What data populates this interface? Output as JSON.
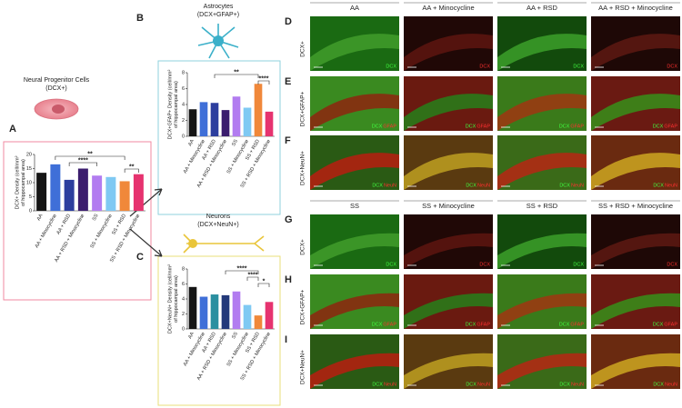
{
  "figure": {
    "panel_A": {
      "letter": "A",
      "title": [
        "Neural Progenitor Cells",
        "(DCX+)"
      ]
    },
    "panel_B": {
      "letter": "B",
      "title": [
        "Astrocytes",
        "(DCX+GFAP+)"
      ]
    },
    "panel_C": {
      "letter": "C",
      "title": [
        "Neurons",
        "(DCX+NeuN+)"
      ]
    }
  },
  "chart_data": [
    {
      "type": "bar",
      "ylabel": [
        "DCX+ Density (cell/mm²",
        "of hippocampal area)"
      ],
      "categories": [
        "AA",
        "AA + Minocycline",
        "AA + RSD",
        "AA + RSD + Minocycline",
        "SS",
        "SS + Minocycline",
        "SS + RSD",
        "SS + RSD + Minocycline"
      ],
      "values": [
        13.5,
        16.5,
        11,
        15,
        12.5,
        12,
        10.5,
        13
      ],
      "colors": [
        "#151515",
        "#3f6fd8",
        "#2c3e9e",
        "#3b1d6e",
        "#b27cf0",
        "#7fc9f3",
        "#f0883a",
        "#e6336f"
      ],
      "ylim": [
        0,
        20
      ],
      "yticks": [
        0,
        5,
        10,
        15,
        20
      ],
      "annotations": [
        {
          "text": "**",
          "from": "AA + Minocycline",
          "to": "SS + RSD"
        },
        {
          "text": "****",
          "from": "AA + RSD",
          "to": "SS"
        },
        {
          "text": "**",
          "from": "SS + RSD",
          "to": "SS + RSD + Minocycline"
        }
      ]
    },
    {
      "type": "bar",
      "ylabel": [
        "DCX+GFAP+ Density (cell/mm²",
        "of hippocampal area)"
      ],
      "categories": [
        "AA",
        "AA + Minocycline",
        "AA + RSD",
        "AA + RSD + Minocycline",
        "SS",
        "SS + Minocycline",
        "SS + RSD",
        "SS + RSD + Minocycline"
      ],
      "values": [
        3.4,
        4.3,
        4.2,
        3.3,
        5.0,
        3.6,
        6.6,
        3.1
      ],
      "colors": [
        "#151515",
        "#3f6fd8",
        "#2c3e9e",
        "#3b1d6e",
        "#b27cf0",
        "#7fc9f3",
        "#f0883a",
        "#e6336f"
      ],
      "ylim": [
        0,
        8
      ],
      "yticks": [
        0,
        2,
        4,
        6,
        8
      ],
      "annotations": [
        {
          "text": "**",
          "from": "AA + RSD",
          "to": "SS + RSD"
        },
        {
          "text": "****",
          "from": "SS + RSD",
          "to": "SS + RSD + Minocycline"
        }
      ]
    },
    {
      "type": "bar",
      "ylabel": [
        "DCX+NeuN+ Density (cell/mm²",
        "of hippocampal area)"
      ],
      "categories": [
        "AA",
        "AA + Minocycline",
        "AA + RSD",
        "AA + RSD + Minocycline",
        "SS",
        "SS + Minocycline",
        "SS + RSD",
        "SS + RSD + Minocycline"
      ],
      "values": [
        5.6,
        4.3,
        4.6,
        4.5,
        5.0,
        3.2,
        1.8,
        3.6
      ],
      "colors": [
        "#151515",
        "#3f6fd8",
        "#2a8fa0",
        "#243a7a",
        "#b27cf0",
        "#7fc9f3",
        "#f0883a",
        "#e6336f"
      ],
      "ylim": [
        0,
        8
      ],
      "yticks": [
        0,
        2,
        4,
        6,
        8
      ],
      "annotations": [
        {
          "text": "****",
          "from": "AA + RSD + Minocycline",
          "to": "SS + RSD"
        },
        {
          "text": "****",
          "from": "SS + Minocycline",
          "to": "SS + RSD"
        },
        {
          "text": "*",
          "from": "SS + RSD",
          "to": "SS + RSD + Minocycline"
        }
      ]
    }
  ],
  "micrographs": [
    {
      "columns": [
        "AA",
        "AA + Minocycline",
        "AA + RSD",
        "AA + RSD + Minocycline"
      ],
      "rows": [
        {
          "letter": "D",
          "label": "DCX+",
          "stains": [
            "DCX"
          ]
        },
        {
          "letter": "E",
          "label": "DCX+GFAP+",
          "stains": [
            "DCX",
            "GFAP"
          ]
        },
        {
          "letter": "F",
          "label": "DCX+NeuN+",
          "stains": [
            "DCX",
            "NeuN"
          ]
        }
      ]
    },
    {
      "columns": [
        "SS",
        "SS + Minocycline",
        "SS + RSD",
        "SS + RSD + Minocycline"
      ],
      "rows": [
        {
          "letter": "G",
          "label": "DCX+",
          "stains": [
            "DCX"
          ]
        },
        {
          "letter": "H",
          "label": "DCX+GFAP+",
          "stains": [
            "DCX",
            "GFAP"
          ]
        },
        {
          "letter": "I",
          "label": "DCX+NeuN+",
          "stains": [
            "DCX",
            "NeuN"
          ]
        }
      ]
    }
  ]
}
